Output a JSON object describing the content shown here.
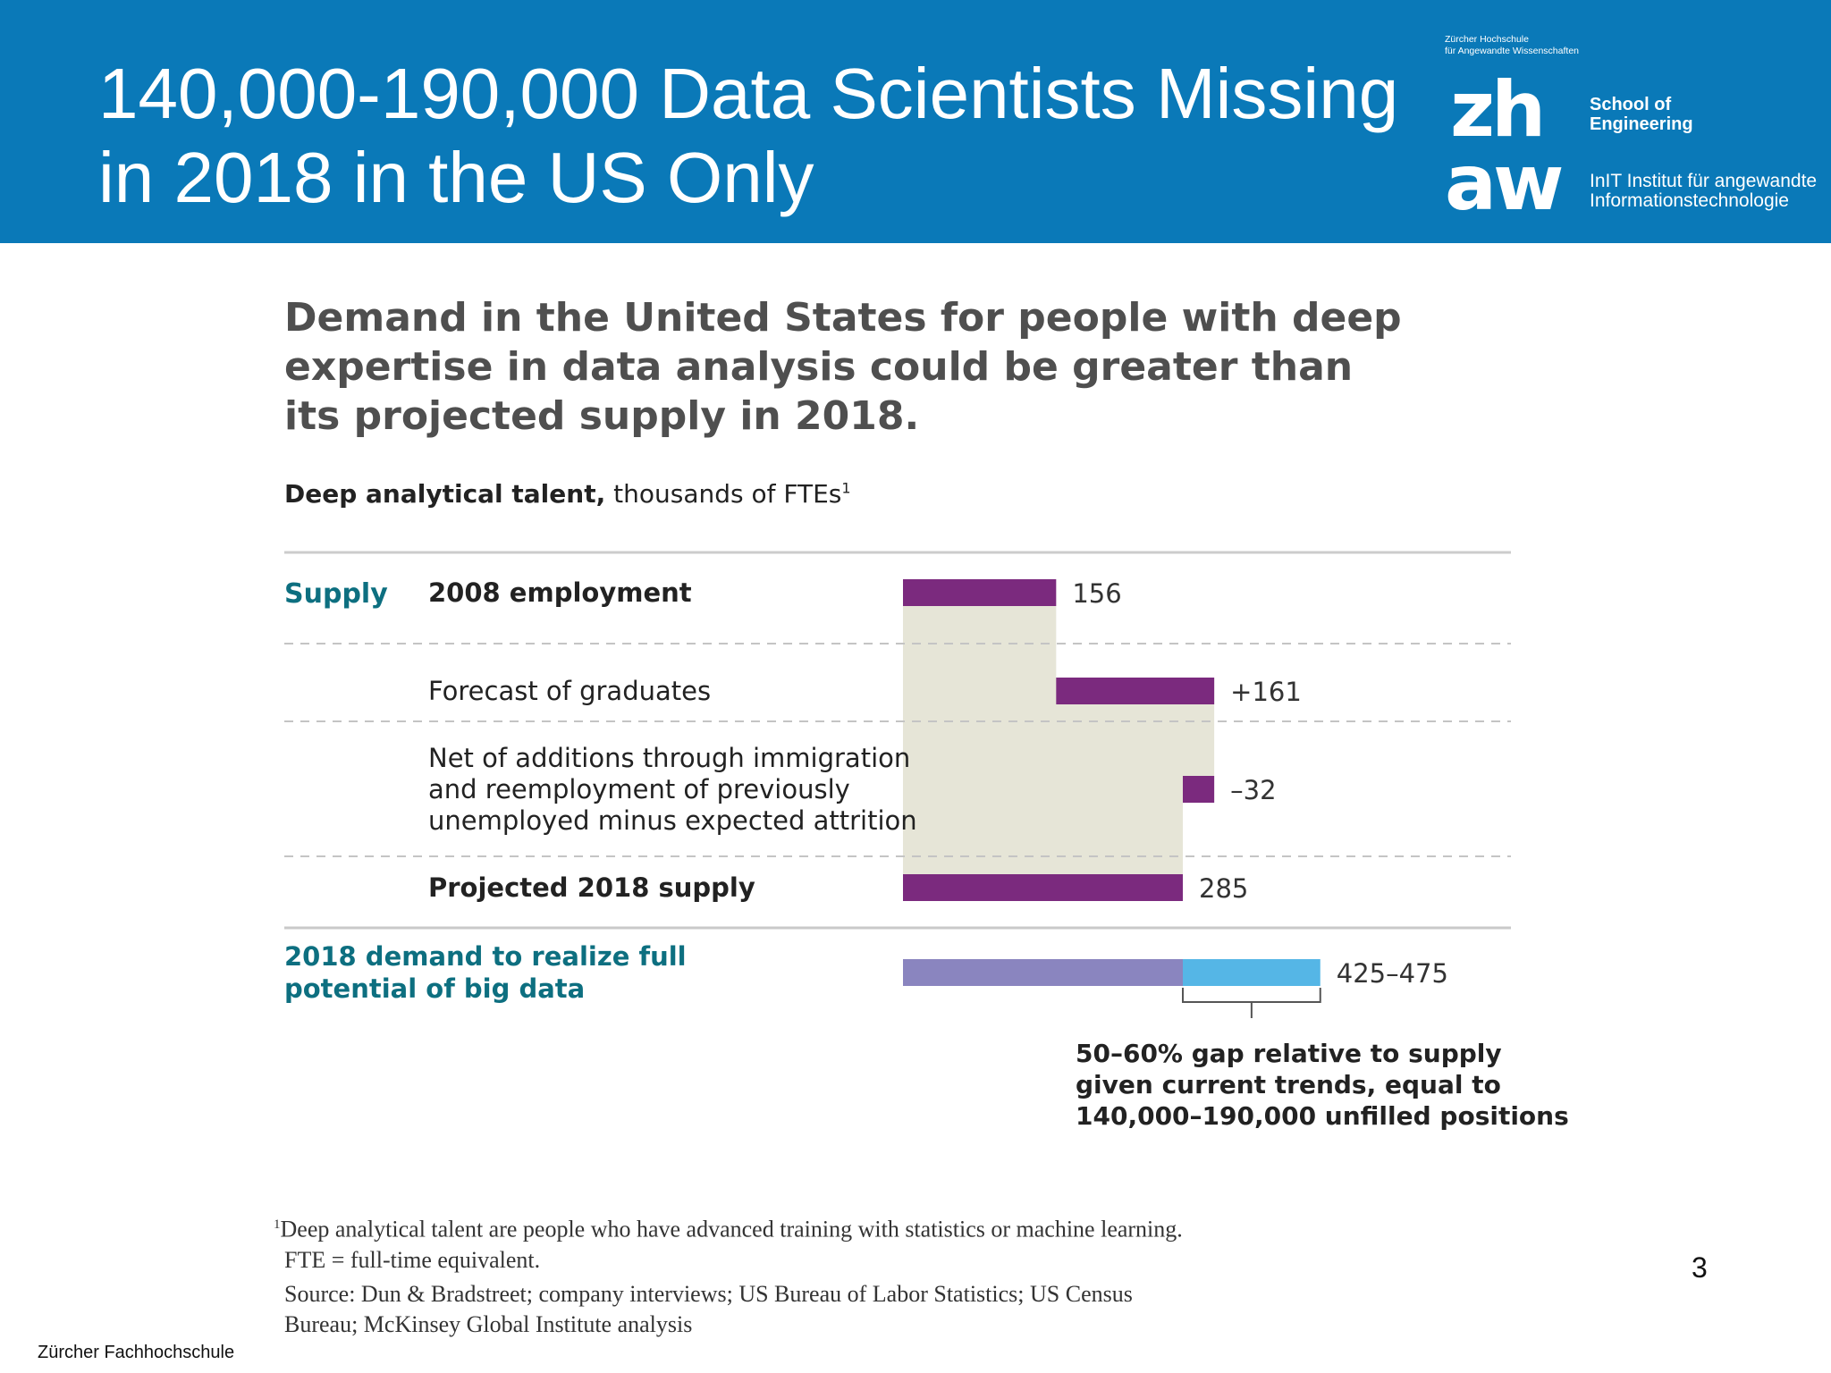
{
  "slide": {
    "title_line1": "140,000-190,000 Data Scientists Missing",
    "title_line2": "in 2018 in the US Only",
    "page_number": "3",
    "footer_institution": "Zürcher Fachhochschule"
  },
  "branding": {
    "univ_line1": "Zürcher Hochschule",
    "univ_line2": "für Angewandte Wissenschaften",
    "logo_top": "zh",
    "logo_bottom": "aw",
    "school_line1": "School of",
    "school_line2": "Engineering",
    "institute_line1": "InIT Institut für angewandte",
    "institute_line2": "Informationstechnologie"
  },
  "colors": {
    "header_blue": "#0a79b8",
    "bar_purple": "#7b2a7e",
    "fill_beige": "#e6e5d7",
    "demand_lavender": "#8a85bf",
    "gap_blue": "#55b6e6",
    "teal_text": "#0d6f80"
  },
  "chart_data": {
    "type": "bar",
    "subtype": "waterfall",
    "title_line1": "Demand in the United States for people with deep",
    "title_line2": "expertise in data analysis could be greater than",
    "title_line3": "its projected supply in 2018.",
    "subtitle_bold": "Deep analytical talent,",
    "subtitle_rest": "thousands of FTEs",
    "subtitle_sup": "1",
    "section_supply": "Supply",
    "section_demand_line1": "2018 demand to realize full",
    "section_demand_line2": "potential of big data",
    "steps": [
      {
        "label_lines": [
          "2008 employment"
        ],
        "value": 156,
        "display": "156",
        "bold": true
      },
      {
        "label_lines": [
          "Forecast of graduates"
        ],
        "value": 161,
        "display": "+161",
        "bold": false
      },
      {
        "label_lines": [
          "Net of additions through immigration",
          "and reemployment of previously",
          "unemployed minus expected attrition"
        ],
        "value": -32,
        "display": "–32",
        "bold": false
      },
      {
        "label_lines": [
          "Projected 2018 supply"
        ],
        "value": 285,
        "display": "285",
        "bold": true
      }
    ],
    "demand": {
      "range": [
        425,
        475
      ],
      "display": "425–475"
    },
    "gap_note": [
      "50–60% gap relative to supply",
      "given current trends, equal to",
      "140,000–190,000 unfilled positions"
    ],
    "x_range": [
      0,
      475
    ]
  },
  "footnotes": {
    "note_marker": "1",
    "note_line1": "Deep analytical talent are people who have advanced training with statistics or machine learning.",
    "note_line2": "FTE = full-time equivalent.",
    "source_line1": "Source: Dun & Bradstreet; company interviews; US Bureau of Labor Statistics; US Census",
    "source_line2": "Bureau; McKinsey Global Institute analysis"
  }
}
